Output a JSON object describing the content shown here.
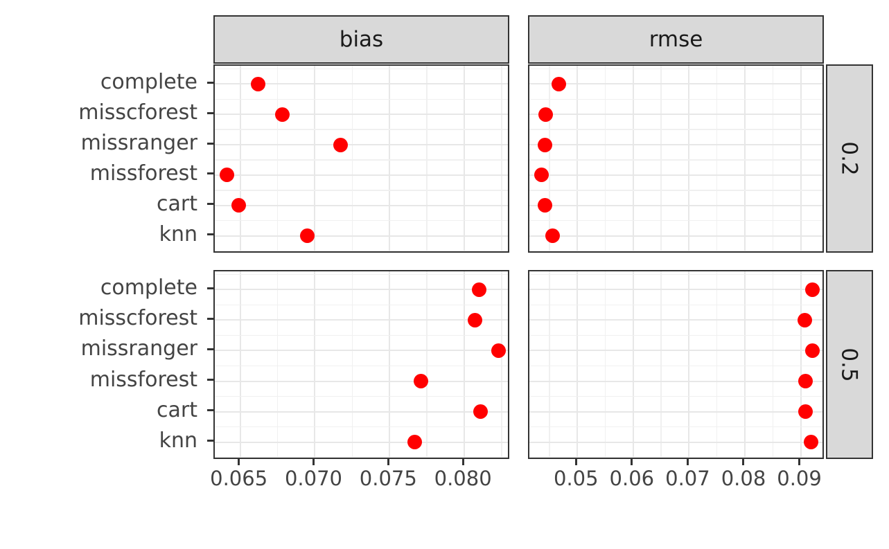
{
  "chart_data": {
    "type": "scatter",
    "title": "",
    "facet_columns": [
      "bias",
      "rmse"
    ],
    "facet_rows": [
      "0.2",
      "0.5"
    ],
    "categories": [
      "complete",
      "misscforest",
      "missranger",
      "missforest",
      "cart",
      "knn"
    ],
    "panels": [
      {
        "col": "bias",
        "row": "0.2",
        "values": [
          0.0662,
          0.0678,
          0.0717,
          0.0641,
          0.0649,
          0.0695
        ]
      },
      {
        "col": "rmse",
        "row": "0.2",
        "values": [
          0.0467,
          0.0443,
          0.0442,
          0.0436,
          0.0442,
          0.0455
        ]
      },
      {
        "col": "bias",
        "row": "0.5",
        "values": [
          0.081,
          0.0807,
          0.0823,
          0.0771,
          0.0811,
          0.0767
        ]
      },
      {
        "col": "rmse",
        "row": "0.5",
        "values": [
          0.0921,
          0.0908,
          0.0921,
          0.0909,
          0.0909,
          0.0918
        ]
      }
    ],
    "x_axes": {
      "bias": {
        "lim": [
          0.0633,
          0.0831
        ],
        "major_breaks": [
          0.065,
          0.07,
          0.075,
          0.08
        ],
        "minor_breaks": [
          0.0675,
          0.0725,
          0.0775,
          0.0825
        ],
        "tick_labels": [
          "0.065",
          "0.070",
          "0.075",
          "0.080"
        ]
      },
      "rmse": {
        "lim": [
          0.0414,
          0.0944
        ],
        "major_breaks": [
          0.05,
          0.06,
          0.07,
          0.08,
          0.09
        ],
        "minor_breaks": [
          0.045,
          0.055,
          0.065,
          0.075,
          0.085
        ],
        "tick_labels": [
          "0.05",
          "0.06",
          "0.07",
          "0.08",
          "0.09"
        ]
      }
    },
    "xlabel": "",
    "ylabel": "",
    "grid": true,
    "legend": "none",
    "point_color": "#ff0000",
    "strip_fill": "#d9d9d9",
    "panel_border_color": "#333333"
  }
}
